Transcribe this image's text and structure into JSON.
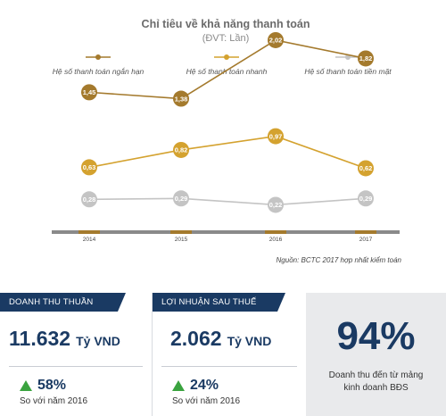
{
  "chart_data": {
    "type": "line",
    "title": "Chỉ tiêu về khả năng thanh toán",
    "subtitle": "(ĐVT: Lần)",
    "categories": [
      "2014",
      "2015",
      "2016",
      "2017"
    ],
    "series": [
      {
        "name": "Hệ số thanh toán ngắn hạn",
        "color": "#a47a2d",
        "values": [
          1.45,
          1.38,
          2.02,
          1.82
        ],
        "labels": [
          "1,45",
          "1,38",
          "2,02",
          "1,82"
        ]
      },
      {
        "name": "Hệ số thanh toán nhanh",
        "color": "#d4a22f",
        "values": [
          0.63,
          0.82,
          0.97,
          0.62
        ],
        "labels": [
          "0,63",
          "0,82",
          "0,97",
          "0,62"
        ]
      },
      {
        "name": "Hệ số thanh toán tiền mặt",
        "color": "#c4c4c4",
        "values": [
          0.28,
          0.29,
          0.22,
          0.29
        ],
        "labels": [
          "0,28",
          "0,29",
          "0,22",
          "0,29"
        ]
      }
    ],
    "legend_position": "top",
    "grid": false,
    "source": "Nguồn: BCTC 2017 hợp nhất kiểm toán"
  },
  "colors": {
    "navy": "#1a3a63",
    "axis_bar": "#8a8a8a",
    "axis_accent": "#a47a2d",
    "growth_arrow": "#3aa33f",
    "panel_gray": "#e9eaec"
  },
  "stats": {
    "revenue": {
      "label": "DOANH THU THUẦN",
      "value": "11.632",
      "unit": "Tỷ VND",
      "growth": "58%",
      "note": "So với năm 2016",
      "icon": "up-triangle-icon"
    },
    "profit": {
      "label": "LỢI NHUẬN SAU THUẾ",
      "value": "2.062",
      "unit": "Tỷ VND",
      "growth": "24%",
      "note": "So với năm 2016",
      "icon": "up-triangle-icon"
    },
    "share": {
      "value": "94%",
      "note_line1": "Doanh thu đến từ mảng",
      "note_line2": "kinh doanh BĐS"
    }
  }
}
